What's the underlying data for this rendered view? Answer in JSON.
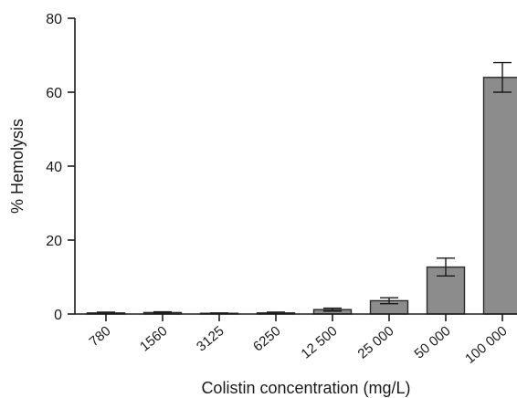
{
  "chart_data": {
    "type": "bar",
    "title": "",
    "xlabel": "Colistin concentration (mg/L)",
    "ylabel": "% Hemolysis",
    "categories": [
      "780",
      "1560",
      "3125",
      "6250",
      "12 500",
      "25 000",
      "50 000",
      "100 000"
    ],
    "values": [
      0.3,
      0.4,
      0.2,
      0.3,
      1.2,
      3.6,
      12.7,
      64.0
    ],
    "errors": [
      0.2,
      0.2,
      0.1,
      0.2,
      0.4,
      0.8,
      2.4,
      4.0
    ],
    "ylim": [
      0,
      80
    ],
    "yticks": [
      "0",
      "20",
      "40",
      "60",
      "80"
    ],
    "grid": false,
    "legend": "none",
    "bar_color": "#8c8c8c",
    "bar_edge_color": "#2a2a2a",
    "axis_color": "#1a1a1a"
  }
}
